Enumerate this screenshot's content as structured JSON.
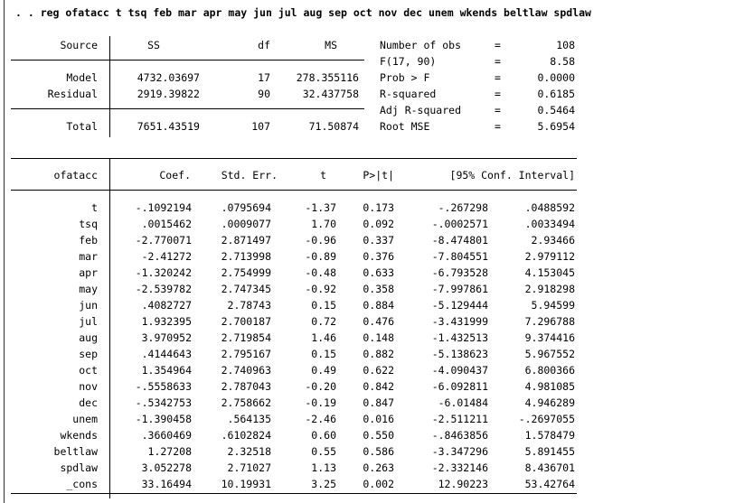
{
  "command": ". . reg ofatacc t tsq feb mar apr may jun jul aug sep oct nov dec unem wkends beltlaw spdlaw",
  "anova": {
    "headers": {
      "source": "Source",
      "ss": "SS",
      "df": "df",
      "ms": "MS"
    },
    "rows": [
      {
        "source": "Model",
        "ss": "4732.03697",
        "df": "17",
        "ms": "278.355116"
      },
      {
        "source": "Residual",
        "ss": "2919.39822",
        "df": "90",
        "ms": "32.437758"
      },
      {
        "source": "Total",
        "ss": "7651.43519",
        "df": "107",
        "ms": "71.50874"
      }
    ]
  },
  "stats": [
    {
      "label": "Number of obs",
      "eq": "=",
      "value": "108"
    },
    {
      "label": "F(17, 90)",
      "eq": "=",
      "value": "8.58"
    },
    {
      "label": "Prob > F",
      "eq": "=",
      "value": "0.0000"
    },
    {
      "label": "R-squared",
      "eq": "=",
      "value": "0.6185"
    },
    {
      "label": "Adj R-squared",
      "eq": "=",
      "value": "0.5464"
    },
    {
      "label": "Root MSE",
      "eq": "=",
      "value": "5.6954"
    }
  ],
  "coef": {
    "headers": {
      "var": "ofatacc",
      "coef": "Coef.",
      "se": "Std. Err.",
      "t": "t",
      "p": "P>|t|",
      "ci": "[95% Conf. Interval]"
    },
    "rows": [
      {
        "var": "t",
        "coef": "-.1092194",
        "se": ".0795694",
        "t": "-1.37",
        "p": "0.173",
        "lo": "-.267298",
        "hi": ".0488592"
      },
      {
        "var": "tsq",
        "coef": ".0015462",
        "se": ".0009077",
        "t": "1.70",
        "p": "0.092",
        "lo": "-.0002571",
        "hi": ".0033494"
      },
      {
        "var": "feb",
        "coef": "-2.770071",
        "se": "2.871497",
        "t": "-0.96",
        "p": "0.337",
        "lo": "-8.474801",
        "hi": "2.93466"
      },
      {
        "var": "mar",
        "coef": "-2.41272",
        "se": "2.713998",
        "t": "-0.89",
        "p": "0.376",
        "lo": "-7.804551",
        "hi": "2.979112"
      },
      {
        "var": "apr",
        "coef": "-1.320242",
        "se": "2.754999",
        "t": "-0.48",
        "p": "0.633",
        "lo": "-6.793528",
        "hi": "4.153045"
      },
      {
        "var": "may",
        "coef": "-2.539782",
        "se": "2.747345",
        "t": "-0.92",
        "p": "0.358",
        "lo": "-7.997861",
        "hi": "2.918298"
      },
      {
        "var": "jun",
        "coef": ".4082727",
        "se": "2.78743",
        "t": "0.15",
        "p": "0.884",
        "lo": "-5.129444",
        "hi": "5.94599"
      },
      {
        "var": "jul",
        "coef": "1.932395",
        "se": "2.700187",
        "t": "0.72",
        "p": "0.476",
        "lo": "-3.431999",
        "hi": "7.296788"
      },
      {
        "var": "aug",
        "coef": "3.970952",
        "se": "2.719854",
        "t": "1.46",
        "p": "0.148",
        "lo": "-1.432513",
        "hi": "9.374416"
      },
      {
        "var": "sep",
        "coef": ".4144643",
        "se": "2.795167",
        "t": "0.15",
        "p": "0.882",
        "lo": "-5.138623",
        "hi": "5.967552"
      },
      {
        "var": "oct",
        "coef": "1.354964",
        "se": "2.740963",
        "t": "0.49",
        "p": "0.622",
        "lo": "-4.090437",
        "hi": "6.800366"
      },
      {
        "var": "nov",
        "coef": "-.5558633",
        "se": "2.787043",
        "t": "-0.20",
        "p": "0.842",
        "lo": "-6.092811",
        "hi": "4.981085"
      },
      {
        "var": "dec",
        "coef": "-.5342753",
        "se": "2.758662",
        "t": "-0.19",
        "p": "0.847",
        "lo": "-6.01484",
        "hi": "4.946289"
      },
      {
        "var": "unem",
        "coef": "-1.390458",
        "se": ".564135",
        "t": "-2.46",
        "p": "0.016",
        "lo": "-2.511211",
        "hi": "-.2697055"
      },
      {
        "var": "wkends",
        "coef": ".3660469",
        "se": ".6102824",
        "t": "0.60",
        "p": "0.550",
        "lo": "-.8463856",
        "hi": "1.578479"
      },
      {
        "var": "beltlaw",
        "coef": "1.27208",
        "se": "2.32518",
        "t": "0.55",
        "p": "0.586",
        "lo": "-3.347296",
        "hi": "5.891455"
      },
      {
        "var": "spdlaw",
        "coef": "3.052278",
        "se": "2.71027",
        "t": "1.13",
        "p": "0.263",
        "lo": "-2.332146",
        "hi": "8.436701"
      },
      {
        "var": "_cons",
        "coef": "33.16494",
        "se": "10.19931",
        "t": "3.25",
        "p": "0.002",
        "lo": "12.90223",
        "hi": "53.42764"
      }
    ]
  }
}
